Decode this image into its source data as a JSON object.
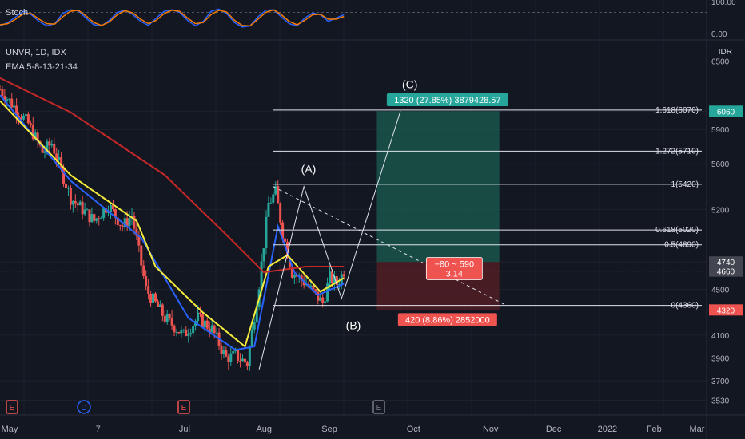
{
  "header": {
    "stoch_label": "Stoch",
    "symbol_label": "UNVR, 1D, IDX",
    "ema_label": "EMA 5-8-13-21-34",
    "currency": "IDR"
  },
  "colors": {
    "background": "#131722",
    "up": "#26a69a",
    "down": "#ef5350",
    "ema_fast": "#2962ff",
    "ema_mid": "#f5eb3c",
    "ema_slow": "#c62828",
    "stoch_k": "#2962ff",
    "stoch_d": "#f57c00",
    "target_zone": "#1b5e50",
    "stop_zone": "#5a1f24"
  },
  "chart_data": [
    {
      "type": "line",
      "title": "Stoch",
      "y_ticks": [
        "100.00",
        "0.00"
      ],
      "ylim": [
        0,
        100
      ],
      "series": [
        {
          "name": "%K",
          "color": "#2962ff",
          "values": [
            20,
            35,
            60,
            85,
            70,
            40,
            20,
            30,
            75,
            92,
            88,
            55,
            25,
            20,
            45,
            80,
            90,
            70,
            40,
            22,
            55,
            85,
            92,
            80,
            45,
            20,
            40,
            85,
            95,
            75,
            35,
            15,
            20,
            60,
            90,
            92,
            60,
            30,
            20,
            55,
            78,
            70,
            40,
            55,
            70
          ]
        },
        {
          "name": "%D",
          "color": "#f57c00",
          "values": [
            25,
            30,
            50,
            75,
            75,
            50,
            30,
            28,
            60,
            85,
            90,
            65,
            35,
            22,
            38,
            70,
            88,
            78,
            50,
            30,
            45,
            75,
            90,
            85,
            55,
            30,
            35,
            70,
            90,
            82,
            45,
            22,
            20,
            50,
            80,
            92,
            70,
            40,
            25,
            45,
            70,
            72,
            50,
            50,
            62
          ]
        }
      ]
    },
    {
      "type": "candlestick",
      "symbol": "UNVR, 1D, IDX",
      "indicator": "EMA 5-8-13-21-34",
      "unit": "IDR",
      "x_ticks": [
        "May",
        "7",
        "Jul",
        "Aug",
        "Sep",
        "Oct",
        "Nov",
        "Dec",
        "2022",
        "Feb",
        "Mar"
      ],
      "y_ticks": [
        6500,
        6060,
        5900,
        5600,
        5200,
        4740,
        4660,
        4500,
        4320,
        4100,
        3900,
        3700,
        3530
      ],
      "ylim": [
        3400,
        6600
      ],
      "price_path": [
        {
          "day": 0,
          "price": 6250
        },
        {
          "day": 12,
          "price": 5950
        },
        {
          "day": 18,
          "price": 5700
        },
        {
          "day": 22,
          "price": 5780
        },
        {
          "day": 30,
          "price": 5300
        },
        {
          "day": 40,
          "price": 5100
        },
        {
          "day": 46,
          "price": 5240
        },
        {
          "day": 52,
          "price": 5050
        },
        {
          "day": 56,
          "price": 5150
        },
        {
          "day": 62,
          "price": 4500
        },
        {
          "day": 70,
          "price": 4250
        },
        {
          "day": 78,
          "price": 4100
        },
        {
          "day": 84,
          "price": 4250
        },
        {
          "day": 90,
          "price": 4150
        },
        {
          "day": 96,
          "price": 3900
        },
        {
          "day": 100,
          "price": 3920
        },
        {
          "day": 105,
          "price": 3850
        },
        {
          "day": 110,
          "price": 4550
        },
        {
          "day": 114,
          "price": 5250
        },
        {
          "day": 117,
          "price": 5350
        },
        {
          "day": 120,
          "price": 5000
        },
        {
          "day": 124,
          "price": 4650
        },
        {
          "day": 130,
          "price": 4550
        },
        {
          "day": 134,
          "price": 4450
        },
        {
          "day": 137,
          "price": 4380
        },
        {
          "day": 140,
          "price": 4600
        },
        {
          "day": 143,
          "price": 4550
        },
        {
          "day": 146,
          "price": 4660
        }
      ],
      "ema_paths": [
        {
          "name": "EMA fast",
          "color": "#2962ff",
          "points": [
            [
              0,
              6200
            ],
            [
              30,
              5450
            ],
            [
              60,
              4950
            ],
            [
              80,
              4250
            ],
            [
              100,
              3970
            ],
            [
              108,
              4000
            ],
            [
              118,
              5050
            ],
            [
              125,
              4650
            ],
            [
              135,
              4450
            ],
            [
              146,
              4550
            ]
          ]
        },
        {
          "name": "EMA mid",
          "color": "#f5eb3c",
          "points": [
            [
              0,
              6150
            ],
            [
              30,
              5500
            ],
            [
              58,
              5100
            ],
            [
              66,
              4700
            ],
            [
              86,
              4300
            ],
            [
              104,
              4000
            ],
            [
              114,
              4700
            ],
            [
              122,
              4800
            ],
            [
              136,
              4480
            ],
            [
              146,
              4600
            ]
          ]
        },
        {
          "name": "EMA slow",
          "color": "#c62828",
          "points": [
            [
              0,
              6350
            ],
            [
              30,
              6050
            ],
            [
              70,
              5500
            ],
            [
              95,
              5000
            ],
            [
              112,
              4650
            ],
            [
              130,
              4700
            ],
            [
              146,
              4700
            ]
          ]
        }
      ],
      "fib_levels": [
        {
          "label": "1.618(6070)",
          "price": 6070
        },
        {
          "label": "1.272(5710)",
          "price": 5710
        },
        {
          "label": "1(5420)",
          "price": 5420
        },
        {
          "label": "0.618(5020)",
          "price": 5020
        },
        {
          "label": "0.5(4890)",
          "price": 4890
        },
        {
          "label": "0(4360)",
          "price": 4360
        }
      ],
      "wave_labels": [
        "(A)",
        "(B)",
        "(C)"
      ],
      "position": {
        "entry_price": 4740,
        "target_price": 6060,
        "stop_price": 4320,
        "target_label": "1320 (27.85%) 3879428.57",
        "stop_label": "420 (8.86%) 2852000",
        "info_label": "−80 ~ 590",
        "ratio_label": "3.14"
      },
      "price_tags": [
        {
          "value": "6060",
          "color": "#26a69a"
        },
        {
          "value": "4740",
          "color": "#434651"
        },
        {
          "value": "4660",
          "color": "#434651"
        },
        {
          "value": "4320",
          "color": "#ef5350"
        }
      ],
      "event_markers": [
        {
          "label": "E",
          "color": "#ef5350"
        },
        {
          "label": "D",
          "color": "#2962ff"
        },
        {
          "label": "E",
          "color": "#ef5350"
        },
        {
          "label": "E",
          "color": "#787b86"
        }
      ]
    }
  ]
}
